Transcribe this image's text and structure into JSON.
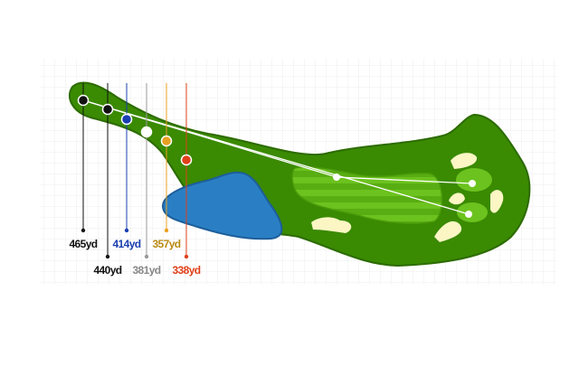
{
  "tees": [
    {
      "label": "465yd"
    },
    {
      "label": "440yd"
    },
    {
      "label": "414yd"
    },
    {
      "label": "381yd"
    },
    {
      "label": "357yd"
    },
    {
      "label": "338yd"
    }
  ]
}
